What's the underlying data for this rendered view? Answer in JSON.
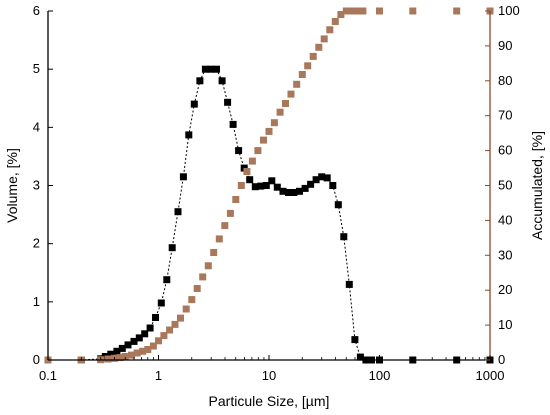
{
  "chart_data": {
    "type": "scatter",
    "xlabel": "Particule Size, [µm]",
    "ylabel_left": "Volume, [%]",
    "ylabel_right": "Accumulated, [%]",
    "x_scale": "log",
    "xlim": [
      0.1,
      1000
    ],
    "ylim_left": [
      0,
      6
    ],
    "ylim_right": [
      0,
      100
    ],
    "x_ticks": [
      {
        "value": 0.1,
        "label": "0.1"
      },
      {
        "value": 1,
        "label": "1"
      },
      {
        "value": 10,
        "label": "10"
      },
      {
        "value": 100,
        "label": "100"
      },
      {
        "value": 1000,
        "label": "1000"
      }
    ],
    "y_left_ticks": [
      {
        "value": 0,
        "label": "0"
      },
      {
        "value": 1,
        "label": "1"
      },
      {
        "value": 2,
        "label": "2"
      },
      {
        "value": 3,
        "label": "3"
      },
      {
        "value": 4,
        "label": "4"
      },
      {
        "value": 5,
        "label": "5"
      },
      {
        "value": 6,
        "label": "6"
      }
    ],
    "y_right_ticks": [
      {
        "value": 0,
        "label": "0"
      },
      {
        "value": 10,
        "label": "10"
      },
      {
        "value": 20,
        "label": "20"
      },
      {
        "value": 30,
        "label": "30"
      },
      {
        "value": 40,
        "label": "40"
      },
      {
        "value": 50,
        "label": "50"
      },
      {
        "value": 60,
        "label": "60"
      },
      {
        "value": 70,
        "label": "70"
      },
      {
        "value": 80,
        "label": "80"
      },
      {
        "value": 90,
        "label": "90"
      },
      {
        "value": 100,
        "label": "100"
      }
    ],
    "grid": false,
    "series": [
      {
        "axis": "left",
        "color": "#000000",
        "marker_style": "filled-square",
        "line_style": "dotted",
        "x": [
          0.1,
          0.2,
          0.3,
          0.33,
          0.37,
          0.42,
          0.47,
          0.53,
          0.6,
          0.67,
          0.75,
          0.84,
          0.94,
          1.06,
          1.19,
          1.33,
          1.5,
          1.68,
          1.88,
          2.11,
          2.37,
          2.66,
          2.98,
          3.35,
          3.76,
          4.22,
          4.73,
          5.31,
          5.96,
          6.69,
          7.51,
          8.43,
          9.46,
          10.6,
          11.9,
          13.4,
          15.0,
          16.8,
          18.9,
          21.2,
          23.8,
          26.7,
          30.0,
          33.6,
          37.8,
          42.4,
          47.5,
          53.3,
          59.9,
          67.2,
          75.4,
          84.6,
          100,
          200,
          500,
          1000
        ],
        "y": [
          0,
          0,
          0.02,
          0.06,
          0.1,
          0.15,
          0.2,
          0.26,
          0.32,
          0.38,
          0.45,
          0.55,
          0.73,
          0.98,
          1.38,
          1.93,
          2.55,
          3.15,
          3.87,
          4.4,
          4.8,
          5.0,
          5.0,
          5.0,
          4.8,
          4.43,
          4.05,
          3.6,
          3.3,
          3.1,
          2.98,
          2.99,
          3.0,
          3.08,
          2.97,
          2.9,
          2.88,
          2.88,
          2.9,
          2.95,
          3.02,
          3.1,
          3.15,
          3.13,
          3.0,
          2.67,
          2.12,
          1.3,
          0.35,
          0.05,
          0,
          0,
          0,
          0,
          0,
          0
        ]
      },
      {
        "axis": "right",
        "color": "#a9785a",
        "marker_style": "filled-square",
        "line_style": "none",
        "x": [
          0.1,
          0.2,
          0.3,
          0.35,
          0.4,
          0.45,
          0.5,
          0.57,
          0.64,
          0.72,
          0.8,
          0.9,
          1.0,
          1.12,
          1.26,
          1.41,
          1.58,
          1.78,
          2.0,
          2.24,
          2.51,
          2.82,
          3.16,
          3.55,
          3.98,
          4.47,
          5.01,
          5.62,
          6.31,
          7.08,
          7.94,
          8.91,
          10.0,
          11.2,
          12.6,
          14.1,
          15.8,
          17.8,
          20.0,
          22.4,
          25.1,
          28.2,
          31.6,
          35.5,
          39.8,
          44.7,
          50.1,
          56.2,
          63.1,
          70.8,
          100,
          200,
          500,
          1000
        ],
        "y": [
          0,
          0,
          0.1,
          0.3,
          0.5,
          0.7,
          1.0,
          1.4,
          2.0,
          2.5,
          3.0,
          4.0,
          5.5,
          7.0,
          8.6,
          10.2,
          12.0,
          14.6,
          17.3,
          20.5,
          23.8,
          27.0,
          30.8,
          34.7,
          38.5,
          42.0,
          46.0,
          50.0,
          54.0,
          57.0,
          60.0,
          63.0,
          65.5,
          68.0,
          71.0,
          73.5,
          76.2,
          79.0,
          81.8,
          84.3,
          87.0,
          89.6,
          92.0,
          94.6,
          97.0,
          99.0,
          100,
          100,
          100,
          100,
          100,
          100,
          100,
          100
        ]
      }
    ]
  }
}
